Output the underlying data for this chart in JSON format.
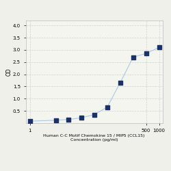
{
  "x": [
    1,
    4,
    8,
    16,
    31.25,
    62.5,
    125,
    250,
    500,
    1000
  ],
  "y": [
    0.08,
    0.12,
    0.15,
    0.22,
    0.35,
    0.65,
    1.65,
    2.7,
    2.85,
    3.1
  ],
  "line_color": "#a8c8e8",
  "marker_color": "#1a3268",
  "marker_size": 14,
  "xlabel_line1": "Human C-C Motif Chemokine 15 / MIP5 (CCL15)",
  "xlabel_line2": "Concentration (pg/ml)",
  "ylabel": "OD",
  "xlim_log": [
    0.8,
    1200
  ],
  "ylim": [
    0,
    4.2
  ],
  "yticks": [
    0.5,
    1.0,
    1.5,
    2.0,
    2.5,
    3.0,
    3.5,
    4.0
  ],
  "xtick_positions": [
    1,
    500,
    1000
  ],
  "xtick_labels": [
    "1",
    "500",
    "1000"
  ],
  "grid_color": "#d0d0d0",
  "bg_color": "#f5f5f0",
  "font_size_label": 4.5,
  "font_size_tick": 5,
  "fig_bg": "#f0f0eb"
}
